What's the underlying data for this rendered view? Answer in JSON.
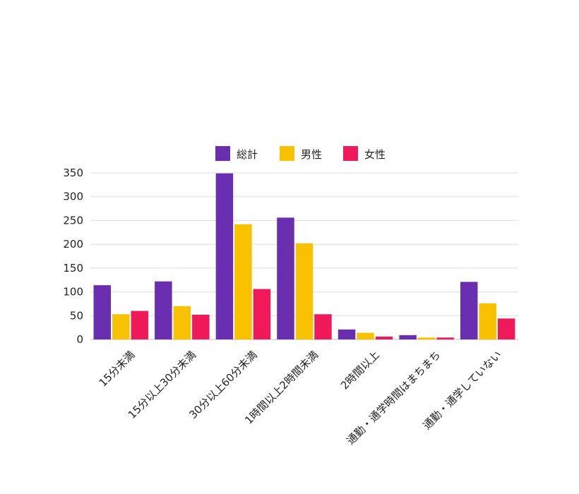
{
  "chart_data": {
    "type": "bar",
    "categories": [
      "15分未満",
      "15分以上30分未満",
      "30分以上60分未満",
      "1時間以上2時間未満",
      "2時間以上",
      "通勤・通学時間はまちまち",
      "通勤・通学していない"
    ],
    "series": [
      {
        "name": "総計",
        "color": "#6a2fb0",
        "values": [
          114,
          122,
          349,
          256,
          21,
          9,
          121
        ]
      },
      {
        "name": "男性",
        "color": "#f9c200",
        "values": [
          53,
          70,
          242,
          202,
          14,
          4,
          76
        ]
      },
      {
        "name": "女性",
        "color": "#f01a5a",
        "values": [
          60,
          52,
          106,
          53,
          6,
          4,
          44
        ]
      }
    ],
    "ylim": [
      0,
      350
    ],
    "yticks": [
      0,
      50,
      100,
      150,
      200,
      250,
      300,
      350
    ],
    "grid": true,
    "legend": "top-center"
  }
}
